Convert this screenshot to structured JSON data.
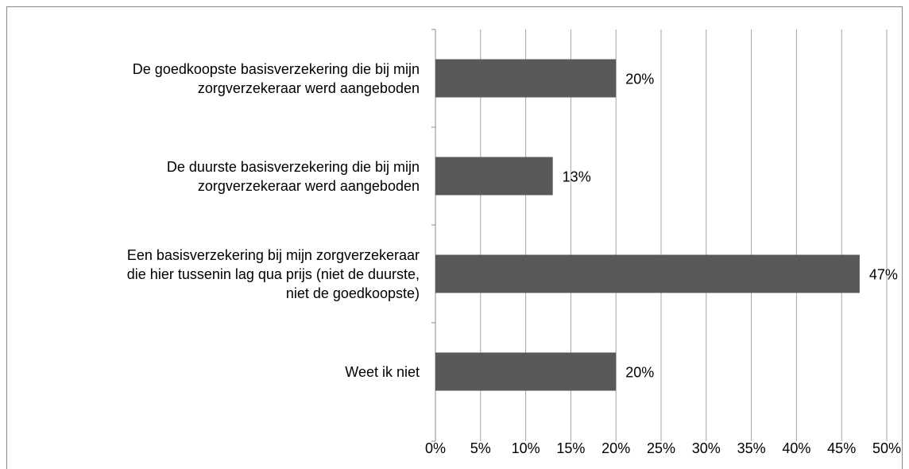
{
  "chart_data": {
    "type": "bar",
    "orientation": "horizontal",
    "categories": [
      "De goedkoopste basisverzekering die bij mijn\nzorgverzekeraar werd aangeboden",
      "De duurste basisverzekering die bij mijn\nzorgverzekeraar werd aangeboden",
      "Een basisverzekering bij mijn zorgverzekeraar\ndie hier tussenin lag qua prijs (niet de duurste,\nniet de goedkoopste)",
      "Weet ik niet"
    ],
    "values": [
      20,
      13,
      47,
      20
    ],
    "value_labels": [
      "20%",
      "13%",
      "47%",
      "20%"
    ],
    "color": "#595959",
    "xlim": [
      0,
      50
    ],
    "xticks": [
      {
        "value": 0,
        "label": "0%"
      },
      {
        "value": 5,
        "label": "5%"
      },
      {
        "value": 10,
        "label": "10%"
      },
      {
        "value": 15,
        "label": "15%"
      },
      {
        "value": 20,
        "label": "20%"
      },
      {
        "value": 25,
        "label": "25%"
      },
      {
        "value": 30,
        "label": "30%"
      },
      {
        "value": 35,
        "label": "35%"
      },
      {
        "value": 40,
        "label": "40%"
      },
      {
        "value": 45,
        "label": "45%"
      },
      {
        "value": 50,
        "label": "50%"
      }
    ],
    "grid": true
  }
}
